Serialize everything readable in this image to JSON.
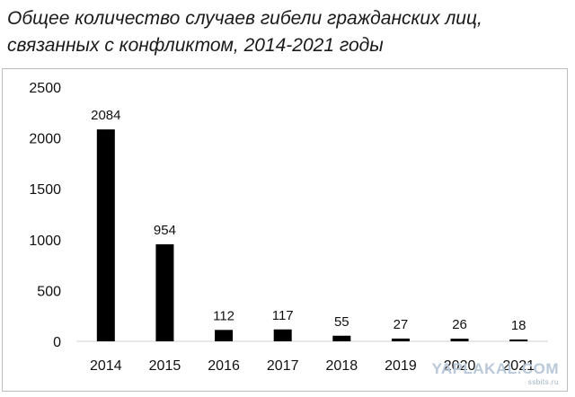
{
  "chart_data": {
    "type": "bar",
    "title_lines": [
      "Общее количество случаев гибели гражданских лиц,",
      "связанных с конфликтом, 2014-2021 годы"
    ],
    "categories": [
      "2014",
      "2015",
      "2016",
      "2017",
      "2018",
      "2019",
      "2020",
      "2021"
    ],
    "values": [
      2084,
      954,
      112,
      117,
      55,
      27,
      26,
      18
    ],
    "data_labels": [
      "2084",
      "954",
      "112",
      "117",
      "55",
      "27",
      "26",
      "18"
    ],
    "ylim": [
      0,
      2500
    ],
    "yticks": [
      0,
      500,
      1000,
      1500,
      2000,
      2500
    ],
    "grid": false,
    "bar_color": "#000000"
  },
  "watermark": {
    "text": "YAPLAKAL.COM",
    "sub": "ssbits.ru"
  }
}
